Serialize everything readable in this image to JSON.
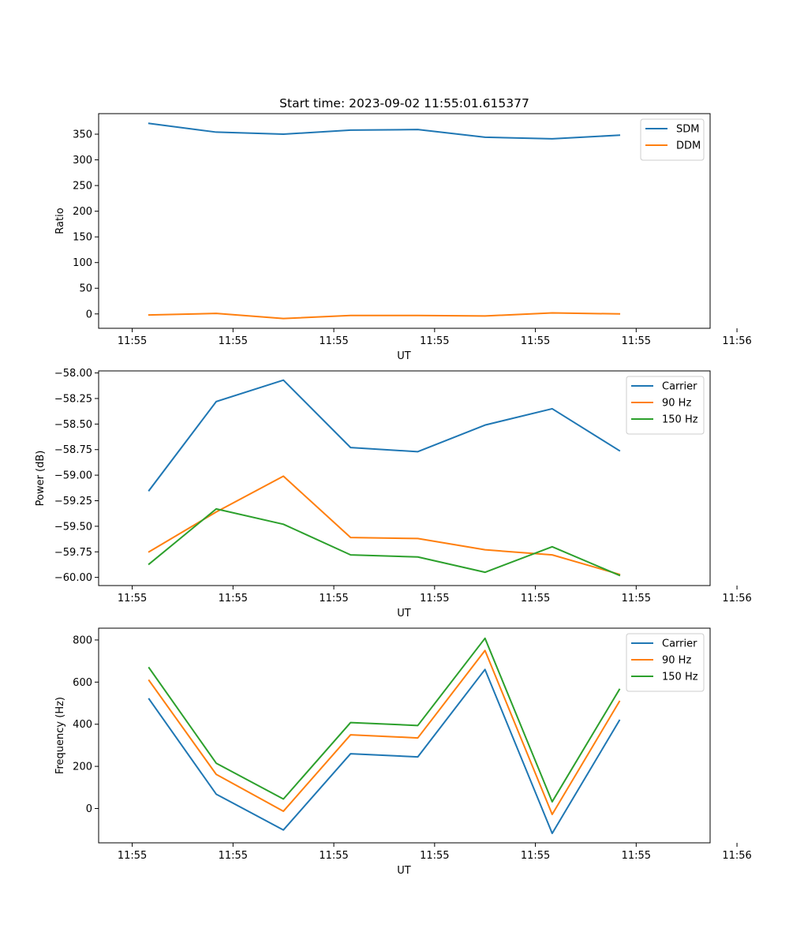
{
  "title": "Start time: 2023-09-02 11:55:01.615377",
  "colors": {
    "blue": "#1f77b4",
    "orange": "#ff7f0e",
    "green": "#2ca02c"
  },
  "chart_data": [
    {
      "type": "line",
      "xlabel": "UT",
      "ylabel": "Ratio",
      "xlim": [
        -0.5,
        8.6
      ],
      "ylim": [
        -28,
        390
      ],
      "x": [
        0.25,
        1.25,
        2.25,
        3.25,
        4.25,
        5.25,
        6.25,
        7.25
      ],
      "xticks": [
        0,
        1.5,
        3,
        4.5,
        6,
        7.5,
        9
      ],
      "xtick_labels": [
        "11:55",
        "11:55",
        "11:55",
        "11:55",
        "11:55",
        "11:55",
        "11:56"
      ],
      "yticks": [
        0,
        50,
        100,
        150,
        200,
        250,
        300,
        350
      ],
      "ytick_labels": [
        "0",
        "50",
        "100",
        "150",
        "200",
        "250",
        "300",
        "350"
      ],
      "legend": "top-right",
      "series": [
        {
          "name": "SDM",
          "color": "#1f77b4",
          "values": [
            371,
            354,
            350,
            358,
            359,
            344,
            341,
            348
          ]
        },
        {
          "name": "DDM",
          "color": "#ff7f0e",
          "values": [
            -2,
            1,
            -9,
            -3,
            -3,
            -4,
            2,
            0
          ]
        }
      ]
    },
    {
      "type": "line",
      "xlabel": "UT",
      "ylabel": "Power (dB)",
      "xlim": [
        -0.5,
        8.6
      ],
      "ylim": [
        -60.08,
        -57.98
      ],
      "x": [
        0.25,
        1.25,
        2.25,
        3.25,
        4.25,
        5.25,
        6.25,
        7.25
      ],
      "xticks": [
        0,
        1.5,
        3,
        4.5,
        6,
        7.5,
        9
      ],
      "xtick_labels": [
        "11:55",
        "11:55",
        "11:55",
        "11:55",
        "11:55",
        "11:55",
        "11:56"
      ],
      "yticks": [
        -60.0,
        -59.75,
        -59.5,
        -59.25,
        -59.0,
        -58.75,
        -58.5,
        -58.25,
        -58.0
      ],
      "ytick_labels": [
        "−60.00",
        "−59.75",
        "−59.50",
        "−59.25",
        "−59.00",
        "−58.75",
        "−58.50",
        "−58.25",
        "−58.00"
      ],
      "legend": "top-right",
      "series": [
        {
          "name": "Carrier",
          "color": "#1f77b4",
          "values": [
            -59.15,
            -58.28,
            -58.07,
            -58.73,
            -58.77,
            -58.51,
            -58.35,
            -58.76
          ]
        },
        {
          "name": "90 Hz",
          "color": "#ff7f0e",
          "values": [
            -59.75,
            -59.36,
            -59.01,
            -59.61,
            -59.62,
            -59.73,
            -59.78,
            -59.97
          ]
        },
        {
          "name": "150 Hz",
          "color": "#2ca02c",
          "values": [
            -59.87,
            -59.33,
            -59.48,
            -59.78,
            -59.8,
            -59.95,
            -59.7,
            -59.98
          ]
        }
      ]
    },
    {
      "type": "line",
      "xlabel": "UT",
      "ylabel": "Frequency (Hz)",
      "xlim": [
        -0.5,
        8.6
      ],
      "ylim": [
        -163,
        856
      ],
      "x": [
        0.25,
        1.25,
        2.25,
        3.25,
        4.25,
        5.25,
        6.25,
        7.25
      ],
      "xticks": [
        0,
        1.5,
        3,
        4.5,
        6,
        7.5,
        9
      ],
      "xtick_labels": [
        "11:55",
        "11:55",
        "11:55",
        "11:55",
        "11:55",
        "11:55",
        "11:56"
      ],
      "yticks": [
        0,
        200,
        400,
        600,
        800
      ],
      "ytick_labels": [
        "0",
        "200",
        "400",
        "600",
        "800"
      ],
      "legend": "top-right",
      "series": [
        {
          "name": "Carrier",
          "color": "#1f77b4",
          "values": [
            520,
            68,
            -102,
            260,
            245,
            660,
            -118,
            418
          ]
        },
        {
          "name": "90 Hz",
          "color": "#ff7f0e",
          "values": [
            608,
            162,
            -13,
            350,
            335,
            750,
            -28,
            508
          ]
        },
        {
          "name": "150 Hz",
          "color": "#2ca02c",
          "values": [
            668,
            215,
            45,
            408,
            394,
            808,
            32,
            565
          ]
        }
      ]
    }
  ]
}
